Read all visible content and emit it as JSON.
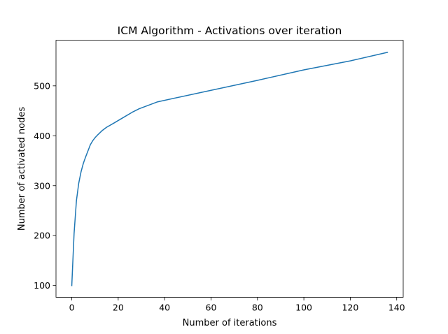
{
  "chart_data": {
    "type": "line",
    "title": "ICM Algorithm - Activations over iteration",
    "xlabel": "Number of iterations",
    "ylabel": "Number of activated nodes",
    "xlim": [
      -6.8,
      142.8
    ],
    "ylim": [
      76.6,
      591.3
    ],
    "xticks": [
      0,
      20,
      40,
      60,
      80,
      100,
      120,
      140
    ],
    "yticks": [
      100,
      200,
      300,
      400,
      500
    ],
    "grid": false,
    "legend": "none",
    "series": [
      {
        "color": "#1f77b4",
        "x": [
          0,
          1,
          2,
          3,
          4,
          5,
          6,
          7,
          8,
          9,
          10,
          11,
          13,
          15,
          18,
          22,
          26,
          29,
          33,
          37,
          60,
          80,
          100,
          120,
          136
        ],
        "y": [
          100,
          205,
          270,
          305,
          328,
          345,
          358,
          370,
          382,
          390,
          396,
          401,
          410,
          417,
          425,
          436,
          447,
          454,
          461,
          468,
          491,
          511,
          532,
          550,
          567
        ]
      }
    ]
  }
}
